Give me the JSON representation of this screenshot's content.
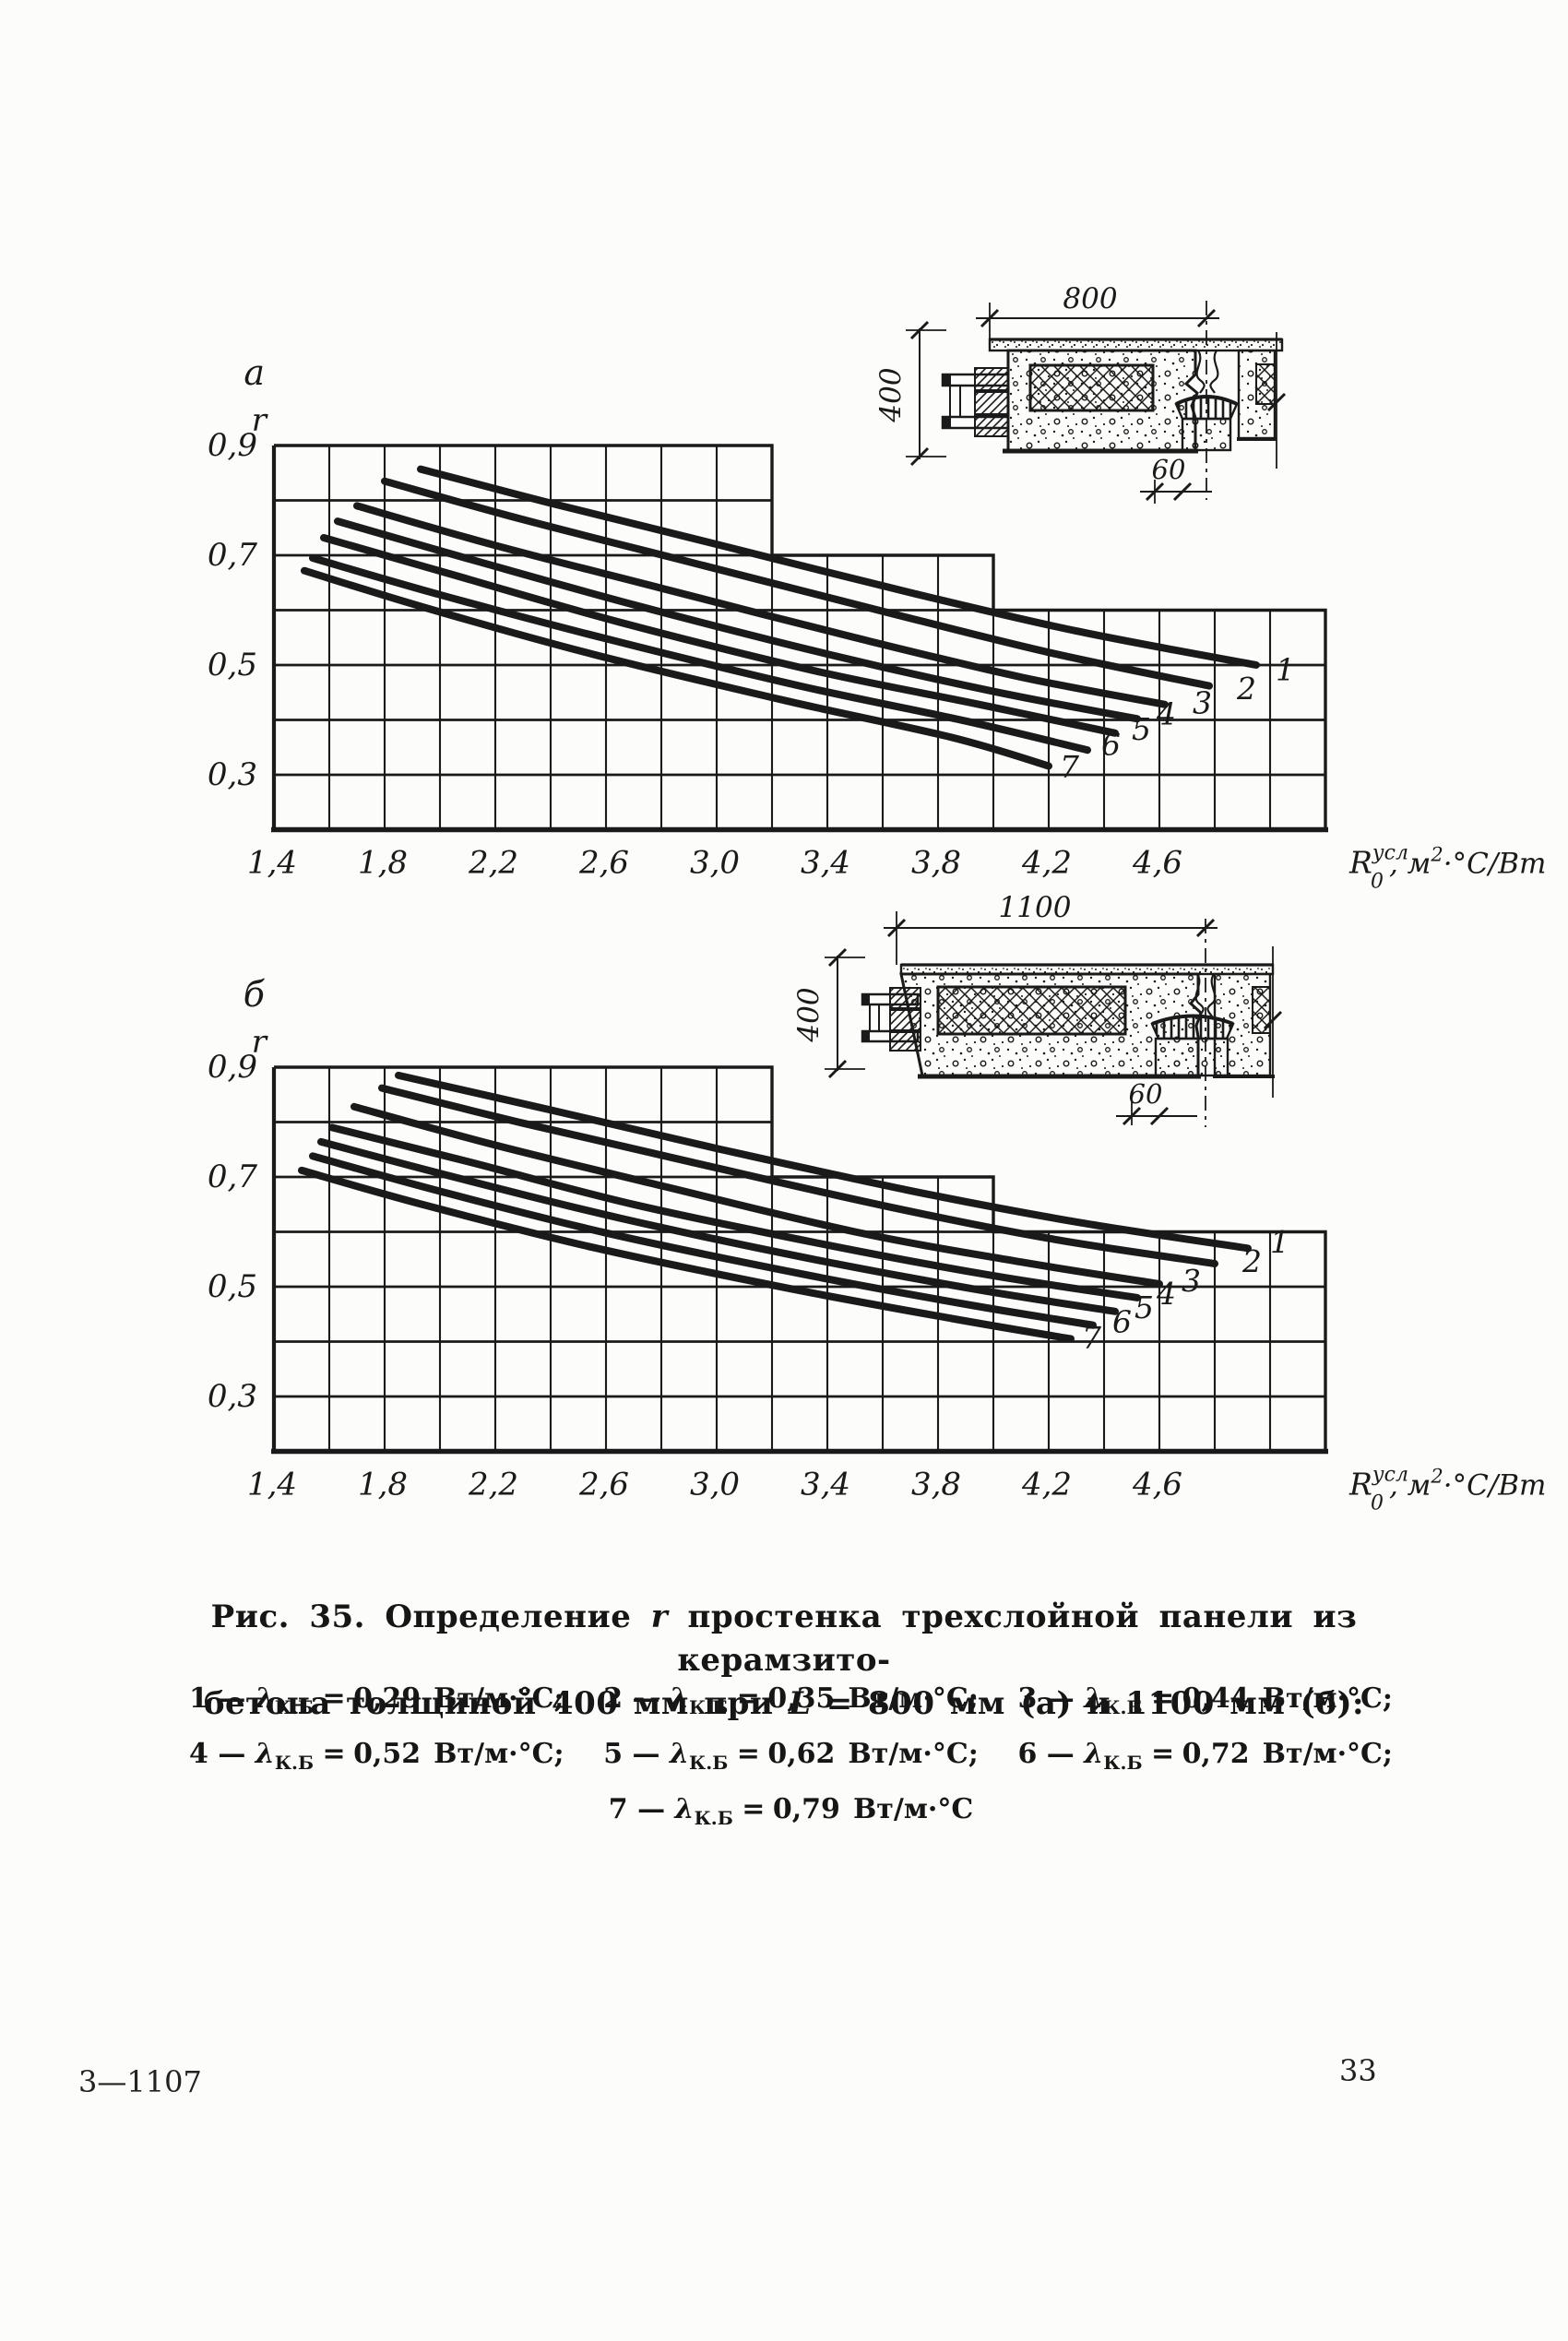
{
  "page": {
    "background": "#fcfcfa",
    "ink": "#1a1a1a",
    "footer_left": "3—1107",
    "page_number": "33"
  },
  "caption": {
    "l1_pre": "Рис. 35. Определение ",
    "l1_var": "r",
    "l1_post": " простенка трехслойной панели из керамзито-",
    "l2_pre": "бетона толщиной 400 мм при ",
    "l2_var": "L",
    "l2_post": " = 800 мм (а) и 1100 мм (б):"
  },
  "legend": {
    "lambda": "λ",
    "subscript": "К.Б",
    "dash": "—",
    "equals": "=",
    "items": [
      {
        "num": "1",
        "value": "0,29",
        "unit": "Вт/м·°С;"
      },
      {
        "num": "2",
        "value": "0,35",
        "unit": "Вт/м·°С;"
      },
      {
        "num": "3",
        "value": "0,44",
        "unit": "Вт/м·°С;"
      },
      {
        "num": "4",
        "value": "0,52",
        "unit": "Вт/м·°С;"
      },
      {
        "num": "5",
        "value": "0,62",
        "unit": "Вт/м·°С;"
      },
      {
        "num": "6",
        "value": "0,72",
        "unit": "Вт/м·°С;"
      },
      {
        "num": "7",
        "value": "0,79",
        "unit": "Вт/м·°С"
      }
    ]
  },
  "drawings": [
    {
      "name": "panel-section-800",
      "width_label": "800",
      "height_label": "400",
      "joint_label": "60"
    },
    {
      "name": "panel-section-1100",
      "width_label": "1100",
      "height_label": "400",
      "joint_label": "60"
    }
  ],
  "chart_data": [
    {
      "type": "line",
      "panel_letter": "а",
      "y_symbol": "r",
      "xlabel_parts": {
        "sym": "R",
        "sup": "усл",
        "sub": "0",
        "rest1": ", м",
        "sup2": "2",
        "rest2": "·°С/Вт"
      },
      "xlabel_plain": "R0усл, м2·°С/Вт",
      "ylabel": "r",
      "xlim": [
        1.4,
        5.2
      ],
      "ylim": [
        0.2,
        0.9
      ],
      "x_grid_step": 0.2,
      "y_grid_step": 0.1,
      "x_tick_values": [
        1.4,
        1.8,
        2.2,
        2.6,
        3.0,
        3.4,
        3.8,
        4.2,
        4.6
      ],
      "x_tick_labels": [
        "1,4",
        "1,8",
        "2,2",
        "2,6",
        "3,0",
        "3,4",
        "3,8",
        "4,2",
        "4,6"
      ],
      "y_tick_values": [
        0.9,
        0.7,
        0.5,
        0.3
      ],
      "y_tick_labels": [
        "0,9",
        "0,7",
        "0,5",
        "0,3"
      ],
      "boundary_steps": [
        {
          "x_end": 3.2,
          "top": 0.9
        },
        {
          "x_end": 4.0,
          "top": 0.7
        },
        {
          "x_end": 5.2,
          "top": 0.6
        }
      ],
      "series": [
        {
          "name": "1",
          "label_at": [
            5.02,
            0.472
          ],
          "points": [
            [
              1.93,
              0.857
            ],
            [
              2.4,
              0.795
            ],
            [
              3.0,
              0.72
            ],
            [
              3.7,
              0.632
            ],
            [
              4.3,
              0.562
            ],
            [
              4.95,
              0.5
            ]
          ]
        },
        {
          "name": "2",
          "label_at": [
            4.88,
            0.438
          ],
          "points": [
            [
              1.8,
              0.835
            ],
            [
              2.3,
              0.765
            ],
            [
              2.9,
              0.688
            ],
            [
              3.6,
              0.598
            ],
            [
              4.2,
              0.523
            ],
            [
              4.78,
              0.462
            ]
          ]
        },
        {
          "name": "3",
          "label_at": [
            4.72,
            0.412
          ],
          "points": [
            [
              1.7,
              0.79
            ],
            [
              2.2,
              0.718
            ],
            [
              2.8,
              0.64
            ],
            [
              3.5,
              0.55
            ],
            [
              4.1,
              0.478
            ],
            [
              4.62,
              0.428
            ]
          ]
        },
        {
          "name": "4",
          "label_at": [
            4.59,
            0.392
          ],
          "points": [
            [
              1.63,
              0.762
            ],
            [
              2.1,
              0.694
            ],
            [
              2.7,
              0.61
            ],
            [
              3.4,
              0.52
            ],
            [
              4.0,
              0.452
            ],
            [
              4.52,
              0.402
            ]
          ]
        },
        {
          "name": "5",
          "label_at": [
            4.5,
            0.364
          ],
          "points": [
            [
              1.58,
              0.732
            ],
            [
              2.05,
              0.664
            ],
            [
              2.65,
              0.578
            ],
            [
              3.35,
              0.49
            ],
            [
              3.95,
              0.428
            ],
            [
              4.44,
              0.376
            ]
          ]
        },
        {
          "name": "6",
          "label_at": [
            4.39,
            0.336
          ],
          "points": [
            [
              1.54,
              0.695
            ],
            [
              2.0,
              0.628
            ],
            [
              2.6,
              0.548
            ],
            [
              3.3,
              0.462
            ],
            [
              3.9,
              0.398
            ],
            [
              4.34,
              0.345
            ]
          ]
        },
        {
          "name": "7",
          "label_at": [
            4.24,
            0.295
          ],
          "points": [
            [
              1.51,
              0.672
            ],
            [
              1.95,
              0.604
            ],
            [
              2.55,
              0.52
            ],
            [
              3.25,
              0.435
            ],
            [
              3.85,
              0.368
            ],
            [
              4.2,
              0.316
            ]
          ]
        }
      ]
    },
    {
      "type": "line",
      "panel_letter": "б",
      "y_symbol": "r",
      "xlabel_parts": {
        "sym": "R",
        "sup": "усл",
        "sub": "0",
        "rest1": ", м",
        "sup2": "2",
        "rest2": "·°С/Вт"
      },
      "xlabel_plain": "R0усл, м2·°С/Вт",
      "ylabel": "r",
      "xlim": [
        1.4,
        5.2
      ],
      "ylim": [
        0.2,
        0.9
      ],
      "x_grid_step": 0.2,
      "y_grid_step": 0.1,
      "x_tick_values": [
        1.4,
        1.8,
        2.2,
        2.6,
        3.0,
        3.4,
        3.8,
        4.2,
        4.6
      ],
      "x_tick_labels": [
        "1,4",
        "1,8",
        "2,2",
        "2,6",
        "3,0",
        "3,4",
        "3,8",
        "4,2",
        "4,6"
      ],
      "y_tick_values": [
        0.9,
        0.7,
        0.5,
        0.3
      ],
      "y_tick_labels": [
        "0,9",
        "0,7",
        "0,5",
        "0,3"
      ],
      "boundary_steps": [
        {
          "x_end": 3.2,
          "top": 0.9
        },
        {
          "x_end": 4.0,
          "top": 0.7
        },
        {
          "x_end": 5.2,
          "top": 0.6
        }
      ],
      "series": [
        {
          "name": "1",
          "label_at": [
            5.0,
            0.562
          ],
          "points": [
            [
              1.85,
              0.885
            ],
            [
              2.4,
              0.822
            ],
            [
              3.0,
              0.752
            ],
            [
              3.7,
              0.675
            ],
            [
              4.3,
              0.618
            ],
            [
              4.92,
              0.57
            ]
          ]
        },
        {
          "name": "2",
          "label_at": [
            4.9,
            0.527
          ],
          "points": [
            [
              1.79,
              0.862
            ],
            [
              2.3,
              0.798
            ],
            [
              2.9,
              0.728
            ],
            [
              3.6,
              0.648
            ],
            [
              4.2,
              0.588
            ],
            [
              4.8,
              0.542
            ]
          ]
        },
        {
          "name": "3",
          "label_at": [
            4.68,
            0.492
          ],
          "points": [
            [
              1.69,
              0.828
            ],
            [
              2.2,
              0.758
            ],
            [
              2.8,
              0.684
            ],
            [
              3.5,
              0.6
            ],
            [
              4.1,
              0.545
            ],
            [
              4.6,
              0.505
            ]
          ]
        },
        {
          "name": "4",
          "label_at": [
            4.59,
            0.468
          ],
          "points": [
            [
              1.61,
              0.79
            ],
            [
              2.1,
              0.728
            ],
            [
              2.7,
              0.65
            ],
            [
              3.4,
              0.576
            ],
            [
              4.0,
              0.52
            ],
            [
              4.52,
              0.48
            ]
          ]
        },
        {
          "name": "5",
          "label_at": [
            4.51,
            0.443
          ],
          "points": [
            [
              1.57,
              0.764
            ],
            [
              2.05,
              0.7
            ],
            [
              2.65,
              0.625
            ],
            [
              3.35,
              0.55
            ],
            [
              3.95,
              0.494
            ],
            [
              4.44,
              0.455
            ]
          ]
        },
        {
          "name": "6",
          "label_at": [
            4.43,
            0.417
          ],
          "points": [
            [
              1.54,
              0.738
            ],
            [
              2.0,
              0.674
            ],
            [
              2.6,
              0.598
            ],
            [
              3.3,
              0.524
            ],
            [
              3.9,
              0.468
            ],
            [
              4.36,
              0.43
            ]
          ]
        },
        {
          "name": "7",
          "label_at": [
            4.32,
            0.387
          ],
          "points": [
            [
              1.5,
              0.712
            ],
            [
              1.95,
              0.648
            ],
            [
              2.55,
              0.572
            ],
            [
              3.25,
              0.498
            ],
            [
              3.85,
              0.442
            ],
            [
              4.28,
              0.405
            ]
          ]
        }
      ]
    }
  ]
}
